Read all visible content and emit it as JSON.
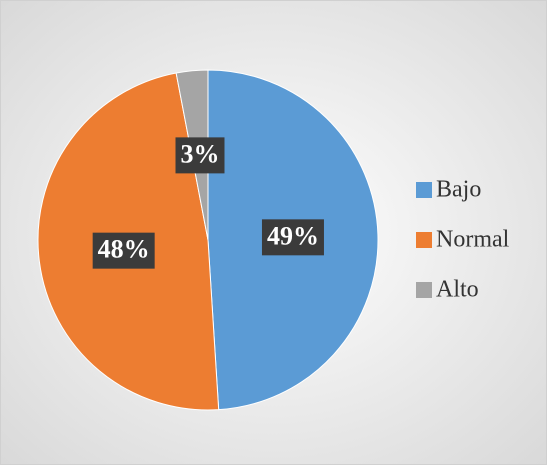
{
  "chart_data": {
    "type": "pie",
    "categories": [
      "Bajo",
      "Normal",
      "Alto"
    ],
    "values": [
      49,
      48,
      3
    ],
    "value_labels": [
      "49%",
      "48%",
      "3%"
    ],
    "colors": [
      "#5b9bd5",
      "#ed7d31",
      "#a5a5a5"
    ],
    "legend": "right"
  }
}
